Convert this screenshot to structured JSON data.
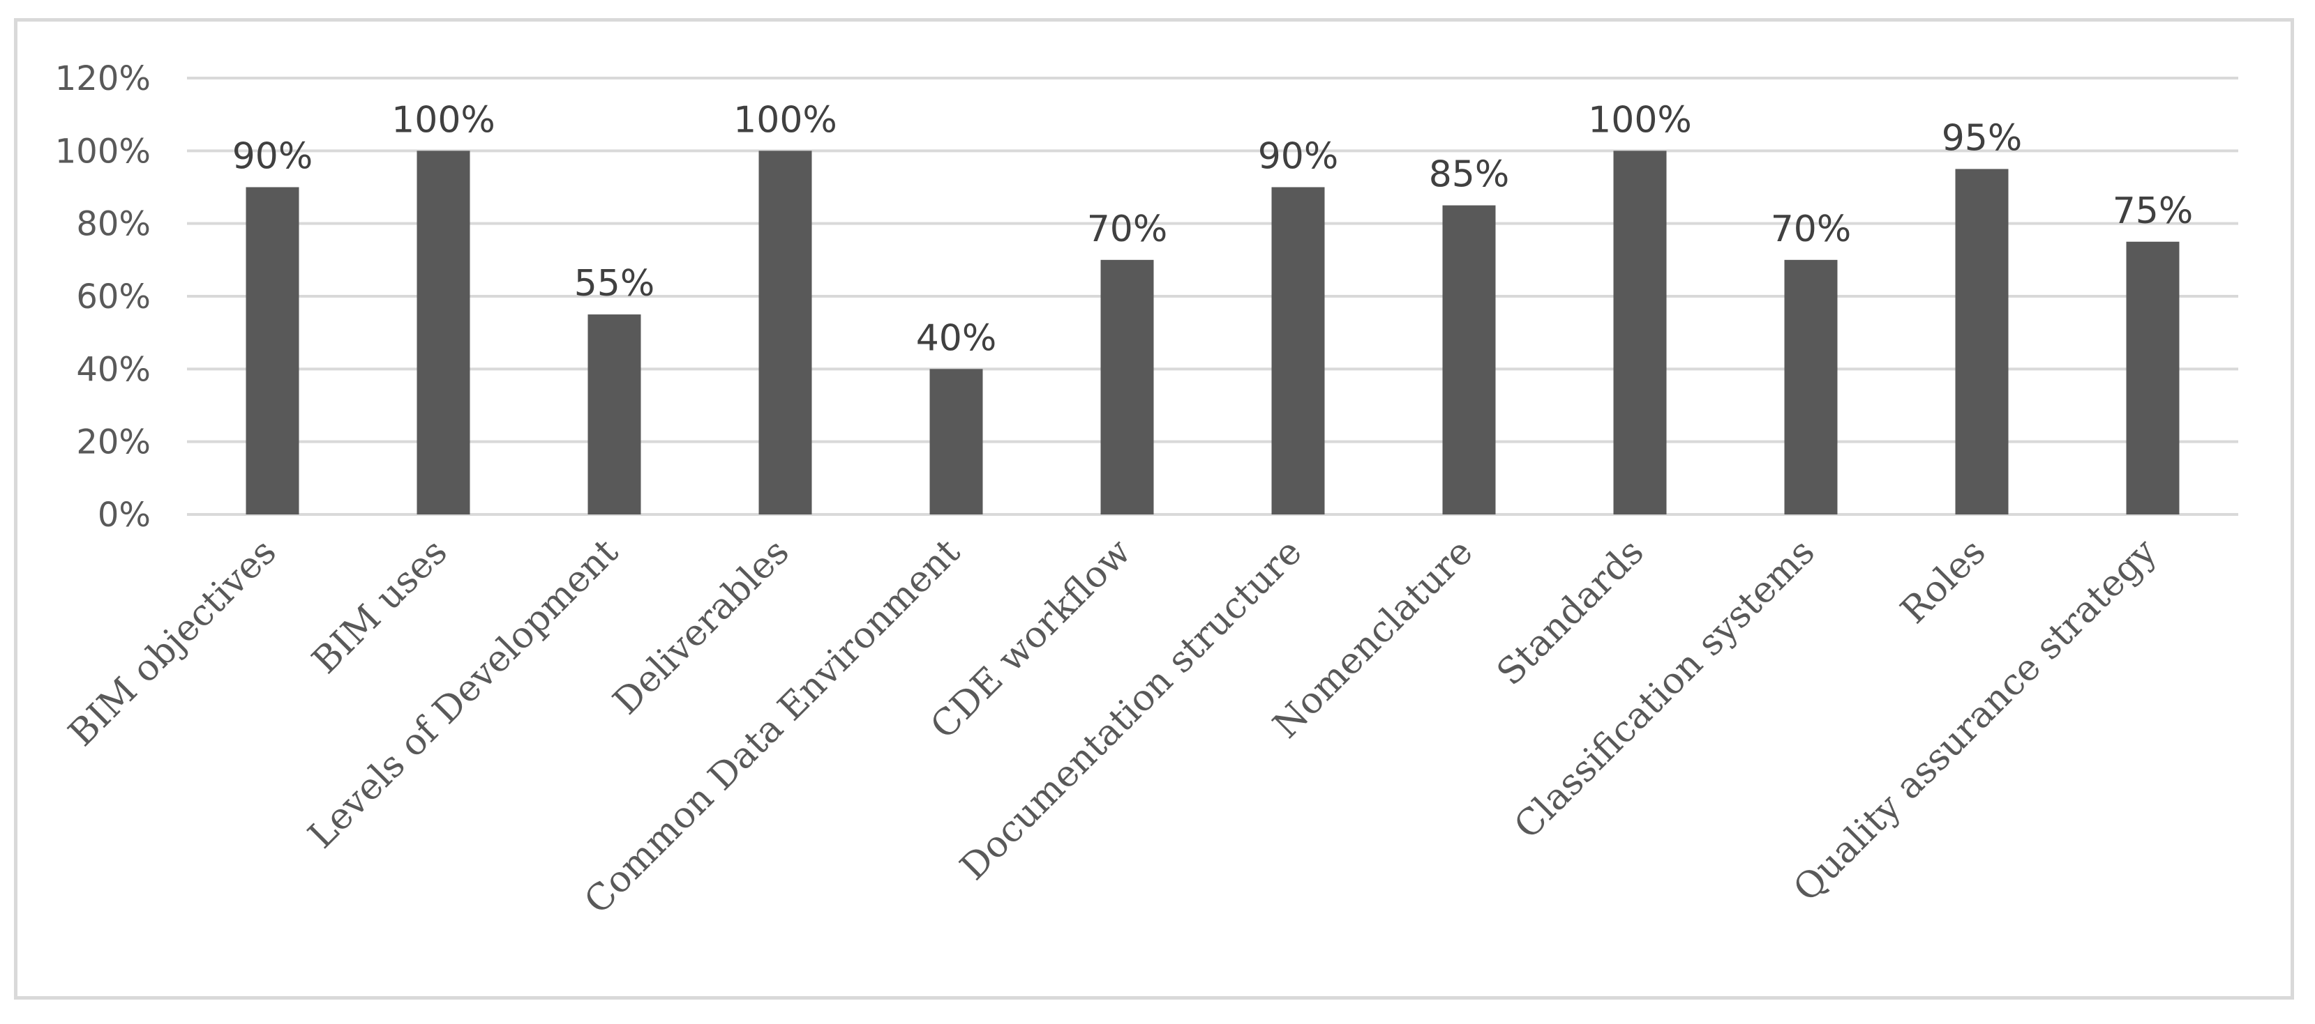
{
  "chart_data": {
    "type": "bar",
    "title": "",
    "xlabel": "",
    "ylabel": "",
    "categories": [
      "BIM objectives",
      "BIM uses",
      "Levels of Development",
      "Deliverables",
      "Common Data Environment",
      "CDE workflow",
      "Documentation structure",
      "Nomenclature",
      "Standards",
      "Classification systems",
      "Roles",
      "Quality assurance strategy"
    ],
    "values": [
      90,
      100,
      55,
      100,
      40,
      70,
      90,
      85,
      100,
      70,
      95,
      75
    ],
    "data_labels": [
      "90%",
      "100%",
      "55%",
      "100%",
      "40%",
      "70%",
      "90%",
      "85%",
      "100%",
      "70%",
      "95%",
      "75%"
    ],
    "ylim": [
      0,
      120
    ],
    "yticks": [
      0,
      20,
      40,
      60,
      80,
      100,
      120
    ],
    "ytick_labels": [
      "0%",
      "20%",
      "40%",
      "60%",
      "80%",
      "100%",
      "120%"
    ],
    "grid": true,
    "legend": "none",
    "colors": {
      "bar": "#595959",
      "grid": "#d9d9d9",
      "text": "#595959",
      "border": "#d9d9d9"
    }
  }
}
